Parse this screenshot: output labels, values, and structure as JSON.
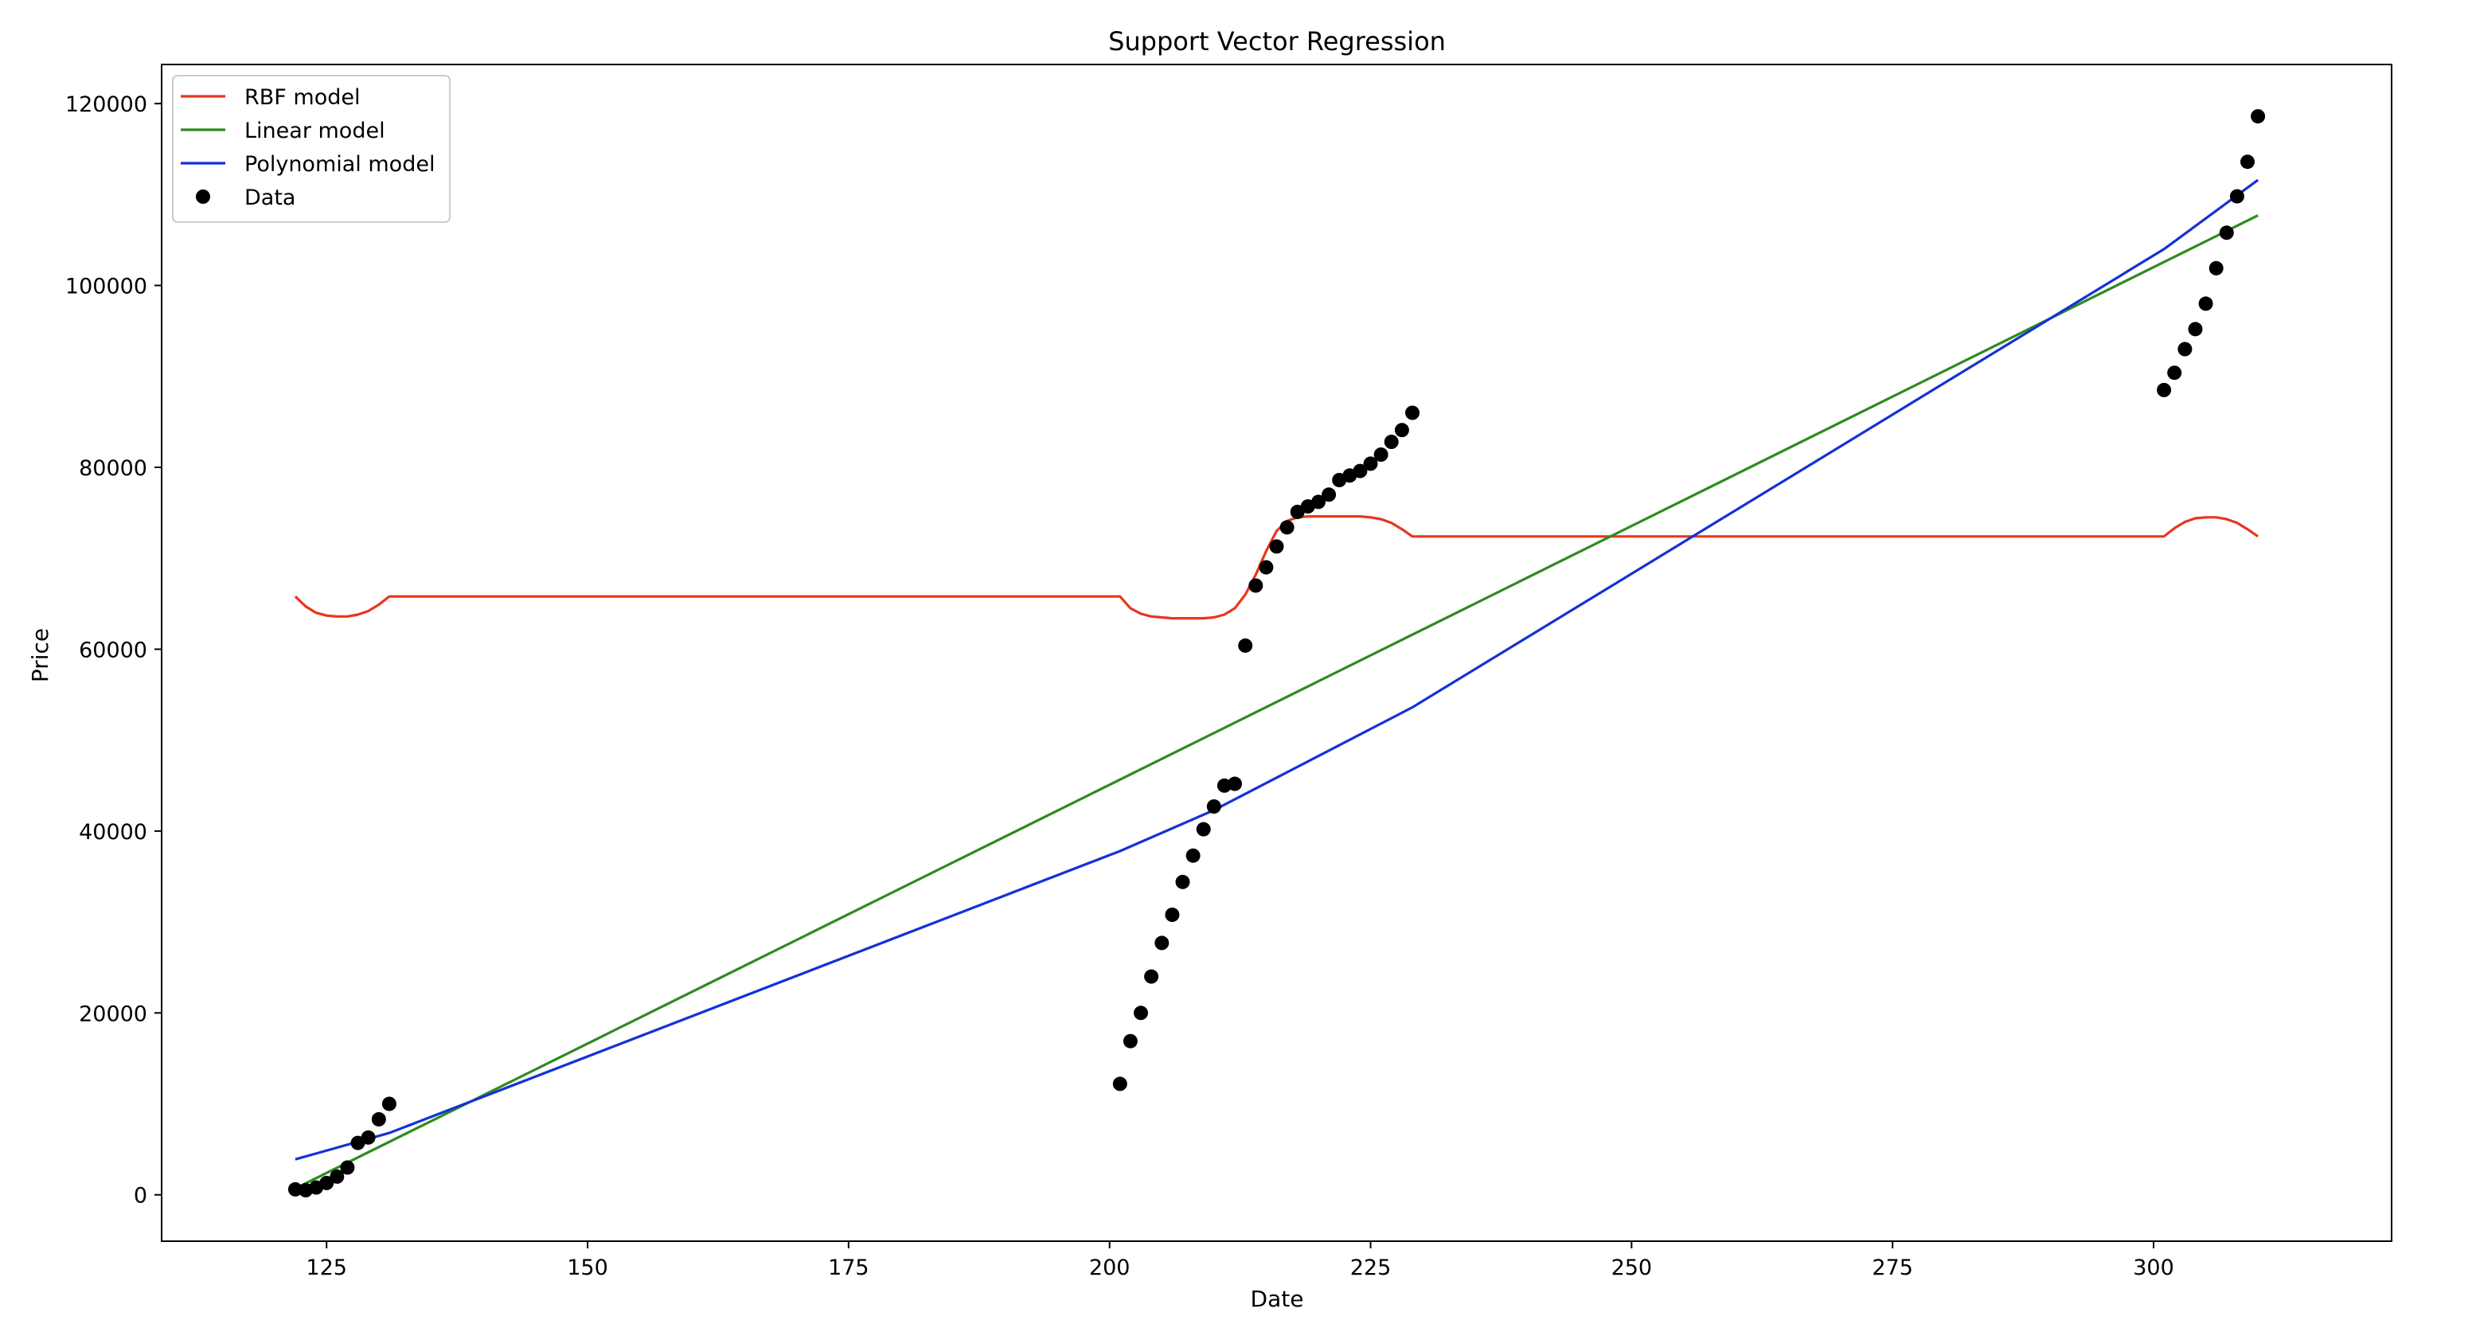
{
  "chart_data": {
    "type": "line",
    "title": "Support Vector Regression",
    "xlabel": "Date",
    "ylabel": "Price",
    "xlim": [
      109.2,
      322.8
    ],
    "ylim": [
      -5100,
      124300
    ],
    "xticks": [
      125,
      150,
      175,
      200,
      225,
      250,
      275,
      300
    ],
    "xtick_labels": [
      "125",
      "150",
      "175",
      "200",
      "225",
      "250",
      "275",
      "300"
    ],
    "yticks": [
      0,
      20000,
      40000,
      60000,
      80000,
      100000,
      120000
    ],
    "ytick_labels": [
      "0",
      "20000",
      "40000",
      "60000",
      "80000",
      "100000",
      "120000"
    ],
    "grid": false,
    "legend_position": "top-left",
    "legend": [
      {
        "label": "RBF model",
        "kind": "line",
        "color": "#e8361c"
      },
      {
        "label": "Linear model",
        "kind": "line",
        "color": "#2e8b1e"
      },
      {
        "label": "Polynomial model",
        "kind": "line",
        "color": "#1432d6"
      },
      {
        "label": "Data",
        "kind": "marker",
        "color": "#000000"
      }
    ],
    "series": [
      {
        "name": "RBF model",
        "color": "#e8361c",
        "x": [
          122,
          123,
          124,
          125,
          126,
          127,
          128,
          129,
          130,
          131,
          201,
          202,
          203,
          204,
          205,
          206,
          207,
          208,
          209,
          210,
          211,
          212,
          213,
          214,
          215,
          216,
          217,
          218,
          219,
          220,
          221,
          222,
          223,
          224,
          225,
          226,
          227,
          228,
          229,
          301,
          302,
          303,
          304,
          305,
          306,
          307,
          308,
          309,
          310
        ],
        "y": [
          65800,
          64700,
          64000,
          63700,
          63600,
          63600,
          63800,
          64200,
          64900,
          65800,
          65800,
          64500,
          63900,
          63600,
          63500,
          63400,
          63400,
          63400,
          63400,
          63500,
          63800,
          64500,
          66000,
          68200,
          70800,
          73000,
          74100,
          74500,
          74600,
          74600,
          74600,
          74600,
          74600,
          74600,
          74500,
          74300,
          73900,
          73200,
          72400,
          72400,
          73300,
          74000,
          74400,
          74500,
          74500,
          74300,
          73900,
          73200,
          72400
        ]
      },
      {
        "name": "Linear model",
        "color": "#2e8b1e",
        "x": [
          122,
          310
        ],
        "y": [
          700,
          107700
        ]
      },
      {
        "name": "Polynomial model",
        "color": "#1432d6",
        "x": [
          122,
          131,
          201,
          210,
          229,
          301,
          310
        ],
        "y": [
          3900,
          6800,
          37800,
          42300,
          53600,
          104000,
          111600
        ]
      }
    ],
    "scatter": {
      "name": "Data",
      "color": "#000000",
      "x": [
        122,
        123,
        124,
        125,
        126,
        127,
        128,
        129,
        130,
        131,
        201,
        202,
        203,
        204,
        205,
        206,
        207,
        208,
        209,
        210,
        211,
        212,
        213,
        214,
        215,
        216,
        217,
        218,
        219,
        220,
        221,
        222,
        223,
        224,
        225,
        226,
        227,
        228,
        229,
        301,
        302,
        303,
        304,
        305,
        306,
        307,
        308,
        309,
        310
      ],
      "y": [
        600,
        500,
        800,
        1300,
        2000,
        3000,
        5700,
        6300,
        8300,
        10000,
        12200,
        16900,
        20000,
        24000,
        27700,
        30800,
        34400,
        37300,
        40200,
        42700,
        45000,
        45200,
        60400,
        67000,
        69000,
        71300,
        73400,
        75100,
        75700,
        76200,
        77000,
        78600,
        79100,
        79600,
        80400,
        81400,
        82800,
        84100,
        86000,
        88500,
        90400,
        93000,
        95200,
        98000,
        101900,
        105800,
        109800,
        113600,
        118600
      ]
    }
  }
}
